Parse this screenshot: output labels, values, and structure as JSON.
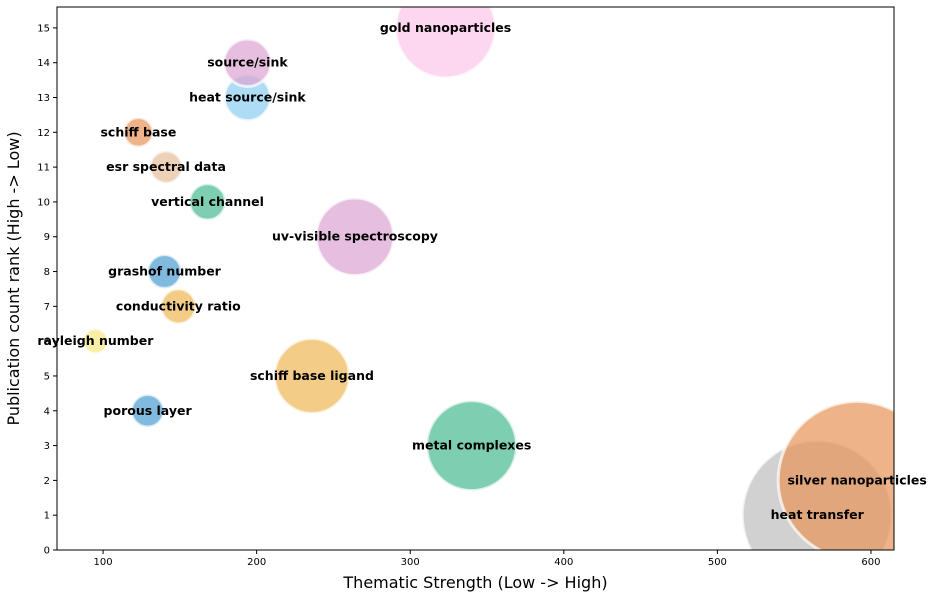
{
  "chart_data": {
    "type": "scatter",
    "xlabel": "Thematic Strength (Low -> High)",
    "ylabel": "Publication count rank (High -> Low)",
    "xlim": [
      70,
      615
    ],
    "ylim": [
      0,
      15.6
    ],
    "xticks": [
      100,
      200,
      300,
      400,
      500,
      600
    ],
    "yticks": [
      0,
      1,
      2,
      3,
      4,
      5,
      6,
      7,
      8,
      9,
      10,
      11,
      12,
      13,
      14,
      15
    ],
    "grid": false,
    "legend": "none",
    "points": [
      {
        "label": "heat transfer",
        "x": 565,
        "y": 1,
        "size": 600,
        "color": "#bfbfbf"
      },
      {
        "label": "silver nanoparticles",
        "x": 591,
        "y": 2,
        "size": 632,
        "color": "#e8955a"
      },
      {
        "label": "metal complexes",
        "x": 340,
        "y": 3,
        "size": 360,
        "color": "#4cbb94"
      },
      {
        "label": "porous layer",
        "x": 129,
        "y": 4,
        "size": 130,
        "color": "#4f9fd1"
      },
      {
        "label": "schiff base ligand",
        "x": 236,
        "y": 5,
        "size": 300,
        "color": "#efb95a"
      },
      {
        "label": "rayleigh number",
        "x": 95,
        "y": 6,
        "size": 100,
        "color": "#f5e882"
      },
      {
        "label": "conductivity ratio",
        "x": 149,
        "y": 7,
        "size": 140,
        "color": "#efb95a"
      },
      {
        "label": "grashof number",
        "x": 140,
        "y": 8,
        "size": 135,
        "color": "#4f9fd1"
      },
      {
        "label": "uv-visible spectroscopy",
        "x": 264,
        "y": 9,
        "size": 310,
        "color": "#dca5d2"
      },
      {
        "label": "vertical channel",
        "x": 168,
        "y": 10,
        "size": 145,
        "color": "#4cbb94"
      },
      {
        "label": "esr spectral data",
        "x": 141,
        "y": 11,
        "size": 130,
        "color": "#e7bf9e"
      },
      {
        "label": "schiff base",
        "x": 123,
        "y": 12,
        "size": 118,
        "color": "#e8955a"
      },
      {
        "label": "heat source/sink",
        "x": 194,
        "y": 13,
        "size": 185,
        "color": "#8ecff0"
      },
      {
        "label": "source/sink",
        "x": 194,
        "y": 14,
        "size": 190,
        "color": "#dca5d2"
      },
      {
        "label": "gold nanoparticles",
        "x": 323,
        "y": 15,
        "size": 400,
        "color": "#fcc8ea"
      }
    ]
  }
}
